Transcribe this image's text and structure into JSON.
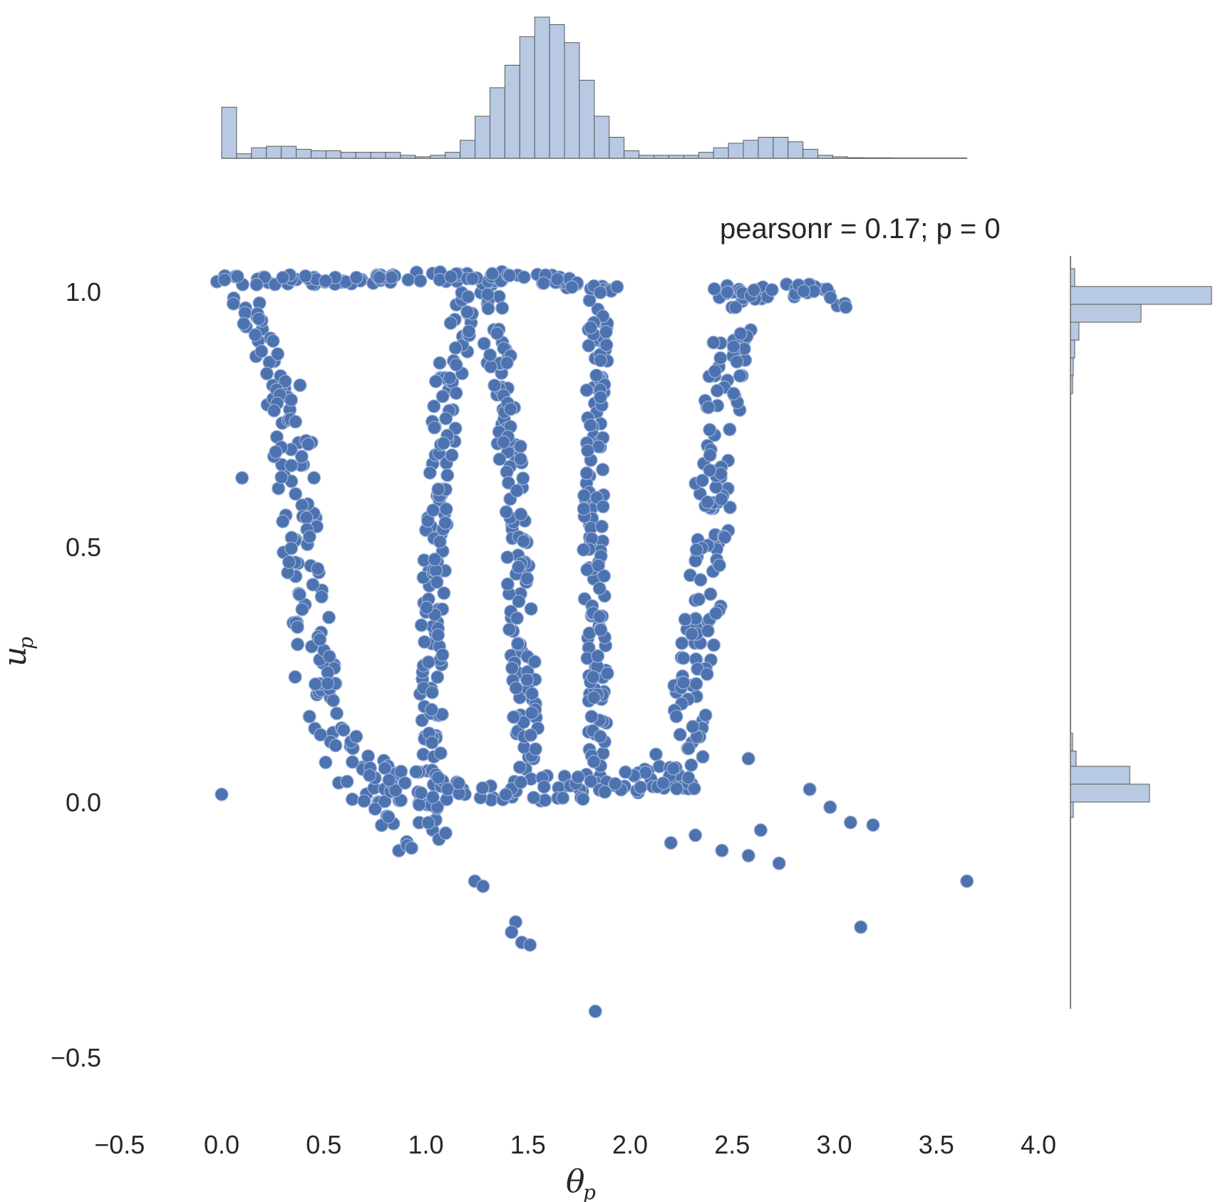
{
  "chart_data": {
    "type": "scatter",
    "kind": "jointplot",
    "annotation": "pearsonr = 0.17; p = 0",
    "xlabel": "θ",
    "xlabel_sub": "p",
    "ylabel": "u",
    "ylabel_sub": "p",
    "xlim": [
      -0.5,
      4.0
    ],
    "ylim": [
      -0.5,
      1.1
    ],
    "xticks": [
      "−0.5",
      "0.0",
      "0.5",
      "1.0",
      "1.5",
      "2.0",
      "2.5",
      "3.0",
      "3.5",
      "4.0"
    ],
    "yticks": [
      "−0.5",
      "0.0",
      "0.5",
      "1.0"
    ],
    "grid": false,
    "colors": {
      "points": "#4c72b0",
      "points_edge": "#9fb3d8",
      "hist_fill": "#b8c9e3",
      "hist_edge": "#5a5a5a",
      "axis_line": "#555555"
    },
    "bands": [
      {
        "name": "band-1",
        "path": [
          [
            0.0,
            1.0
          ],
          [
            0.15,
            0.96
          ],
          [
            0.32,
            0.78
          ],
          [
            0.42,
            0.45
          ],
          [
            0.5,
            0.2
          ],
          [
            0.72,
            0.02
          ],
          [
            0.95,
            -0.05
          ]
        ],
        "width": 0.2
      },
      {
        "name": "band-2",
        "path": [
          [
            1.2,
            1.0
          ],
          [
            1.1,
            0.78
          ],
          [
            1.05,
            0.5
          ],
          [
            1.02,
            0.2
          ],
          [
            1.02,
            0.02
          ],
          [
            1.05,
            -0.05
          ]
        ],
        "width": 0.12
      },
      {
        "name": "band-3",
        "path": [
          [
            1.3,
            1.02
          ],
          [
            1.4,
            0.75
          ],
          [
            1.45,
            0.5
          ],
          [
            1.48,
            0.25
          ],
          [
            1.5,
            0.05
          ]
        ],
        "width": 0.12
      },
      {
        "name": "band-4",
        "path": [
          [
            1.85,
            1.0
          ],
          [
            1.83,
            0.75
          ],
          [
            1.82,
            0.5
          ],
          [
            1.84,
            0.25
          ],
          [
            1.85,
            0.05
          ]
        ],
        "width": 0.1
      },
      {
        "name": "band-5",
        "path": [
          [
            2.55,
            1.0
          ],
          [
            2.45,
            0.78
          ],
          [
            2.38,
            0.5
          ],
          [
            2.32,
            0.25
          ],
          [
            2.25,
            0.08
          ],
          [
            2.1,
            0.02
          ]
        ],
        "width": 0.18
      },
      {
        "name": "band-6",
        "path": [
          [
            2.4,
            1.0
          ],
          [
            2.7,
            1.0
          ],
          [
            2.95,
            1.0
          ],
          [
            3.05,
            0.98
          ]
        ],
        "width": 0.06
      },
      {
        "name": "band-7",
        "path": [
          [
            0.7,
            0.05
          ],
          [
            1.2,
            0.02
          ],
          [
            1.8,
            0.03
          ],
          [
            2.3,
            0.05
          ]
        ],
        "width": 0.1
      },
      {
        "name": "band-8",
        "path": [
          [
            0.02,
            1.02
          ],
          [
            1.2,
            1.03
          ],
          [
            1.5,
            1.03
          ],
          [
            1.95,
            1.0
          ]
        ],
        "width": 0.04
      }
    ],
    "outliers": [
      {
        "x": 0.0,
        "y": 0.015
      },
      {
        "x": 0.1,
        "y": 0.635
      },
      {
        "x": 0.36,
        "y": 0.245
      },
      {
        "x": 0.93,
        "y": -0.09
      },
      {
        "x": 1.24,
        "y": -0.155
      },
      {
        "x": 1.28,
        "y": -0.165
      },
      {
        "x": 1.44,
        "y": -0.235
      },
      {
        "x": 1.42,
        "y": -0.255
      },
      {
        "x": 1.47,
        "y": -0.275
      },
      {
        "x": 1.51,
        "y": -0.28
      },
      {
        "x": 1.83,
        "y": -0.41
      },
      {
        "x": 2.58,
        "y": 0.085
      },
      {
        "x": 2.88,
        "y": 0.025
      },
      {
        "x": 3.08,
        "y": -0.04
      },
      {
        "x": 3.19,
        "y": -0.045
      },
      {
        "x": 3.13,
        "y": -0.245
      },
      {
        "x": 3.65,
        "y": -0.155
      },
      {
        "x": 2.73,
        "y": -0.12
      },
      {
        "x": 2.58,
        "y": -0.105
      },
      {
        "x": 2.45,
        "y": -0.095
      },
      {
        "x": 2.2,
        "y": -0.08
      },
      {
        "x": 2.32,
        "y": -0.065
      },
      {
        "x": 2.64,
        "y": -0.055
      },
      {
        "x": 2.98,
        "y": -0.01
      }
    ],
    "x_marginal": {
      "bin_start": 0.0,
      "bin_width": 0.073,
      "counts": [
        34,
        3,
        7,
        8,
        8,
        6,
        5,
        5,
        4,
        4,
        4,
        4,
        2,
        1,
        2,
        4,
        12,
        28,
        47,
        62,
        81,
        94,
        89,
        77,
        52,
        28,
        14,
        5,
        2,
        2,
        2,
        2,
        4,
        7,
        10,
        12,
        14,
        14,
        11,
        6,
        2,
        1,
        0.4,
        0.3,
        0.3,
        0.2,
        0.2,
        0.2,
        0.2,
        0.2
      ]
    },
    "y_marginal": {
      "bins": [
        {
          "y0": 1.01,
          "y1": 1.045,
          "count": 3
        },
        {
          "y0": 0.975,
          "y1": 1.01,
          "count": 100
        },
        {
          "y0": 0.94,
          "y1": 0.975,
          "count": 50
        },
        {
          "y0": 0.905,
          "y1": 0.94,
          "count": 6
        },
        {
          "y0": 0.87,
          "y1": 0.905,
          "count": 3
        },
        {
          "y0": 0.835,
          "y1": 0.87,
          "count": 2
        },
        {
          "y0": 0.8,
          "y1": 0.835,
          "count": 1.5
        },
        {
          "y0": 0.1,
          "y1": 0.135,
          "count": 1.5
        },
        {
          "y0": 0.07,
          "y1": 0.1,
          "count": 4
        },
        {
          "y0": 0.035,
          "y1": 0.07,
          "count": 42
        },
        {
          "y0": 0.0,
          "y1": 0.035,
          "count": 56
        },
        {
          "y0": -0.03,
          "y1": 0.0,
          "count": 2
        }
      ],
      "y_min": -0.405
    }
  }
}
